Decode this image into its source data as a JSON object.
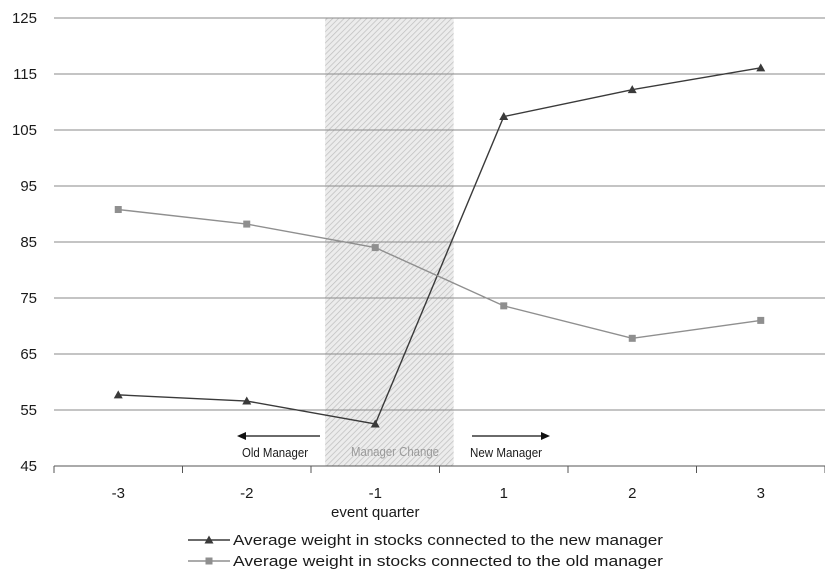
{
  "chart_data": {
    "type": "line",
    "title": "",
    "xlabel": "event quarter",
    "ylabel": "",
    "categories": [
      "-3",
      "-2",
      "-1",
      "1",
      "2",
      "3"
    ],
    "ylim": [
      45,
      125
    ],
    "yticks": [
      "45",
      "55",
      "65",
      "75",
      "85",
      "95",
      "105",
      "115",
      "125"
    ],
    "grid": "horizontal",
    "legend_position": "bottom",
    "series": [
      {
        "name": "Average weight in stocks connected to the new manager",
        "marker": "triangle",
        "color": "#3a3a3a",
        "values": [
          57.7,
          56.6,
          52.5,
          107.4,
          112.2,
          116.1
        ]
      },
      {
        "name": "Average weight in stocks connected to the old manager",
        "marker": "square",
        "color": "#8f8f8f",
        "values": [
          90.8,
          88.2,
          84.0,
          73.6,
          67.8,
          71.0
        ]
      }
    ],
    "annotations": {
      "old_manager": "Old Manager",
      "manager_change": "Manager Change",
      "new_manager": "New Manager"
    },
    "shaded_region": {
      "from_category": "-2",
      "to_category": "1",
      "label": "Manager Change"
    }
  }
}
